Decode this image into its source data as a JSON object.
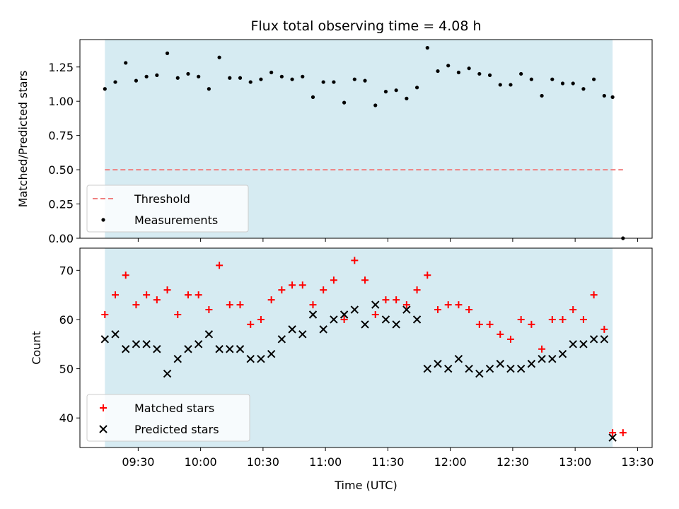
{
  "chart_data": [
    {
      "type": "scatter",
      "title": "Flux total observing time = 4.08 h",
      "ylabel": "Matched/Predicted stars",
      "xlabel": "",
      "ylim": [
        0,
        1.45
      ],
      "yticks": [
        "0.00",
        "0.25",
        "0.50",
        "0.75",
        "1.00",
        "1.25"
      ],
      "xlim": [
        "09:02",
        "13:37"
      ],
      "shaded_range": [
        "09:14",
        "13:18"
      ],
      "shade_color": "#add8e6",
      "threshold": {
        "name": "Threshold",
        "value": 0.5,
        "x_range": [
          "09:14",
          "13:23"
        ],
        "color": "#f08080"
      },
      "legend_position": "lower-left",
      "series": [
        {
          "name": "Measurements",
          "color": "#000000",
          "marker": "dot",
          "x": [
            "09:14",
            "09:19",
            "09:24",
            "09:29",
            "09:34",
            "09:39",
            "09:44",
            "09:49",
            "09:54",
            "09:59",
            "10:04",
            "10:09",
            "10:14",
            "10:19",
            "10:24",
            "10:29",
            "10:34",
            "10:39",
            "10:44",
            "10:49",
            "10:54",
            "10:59",
            "11:04",
            "11:09",
            "11:14",
            "11:19",
            "11:24",
            "11:29",
            "11:34",
            "11:39",
            "11:44",
            "11:49",
            "11:54",
            "11:59",
            "12:04",
            "12:09",
            "12:14",
            "12:19",
            "12:24",
            "12:29",
            "12:34",
            "12:39",
            "12:44",
            "12:49",
            "12:54",
            "12:59",
            "13:04",
            "13:09",
            "13:14",
            "13:18",
            "13:23"
          ],
          "y": [
            1.09,
            1.14,
            1.28,
            1.15,
            1.18,
            1.19,
            1.35,
            1.17,
            1.2,
            1.18,
            1.09,
            1.32,
            1.17,
            1.17,
            1.14,
            1.16,
            1.21,
            1.18,
            1.16,
            1.18,
            1.03,
            1.14,
            1.14,
            0.99,
            1.16,
            1.15,
            0.97,
            1.07,
            1.08,
            1.02,
            1.1,
            1.39,
            1.22,
            1.26,
            1.21,
            1.24,
            1.2,
            1.19,
            1.12,
            1.12,
            1.2,
            1.16,
            1.04,
            1.16,
            1.13,
            1.13,
            1.09,
            1.16,
            1.04,
            1.03,
            0.0
          ]
        }
      ]
    },
    {
      "type": "scatter",
      "xlabel": "Time (UTC)",
      "ylabel": "Count",
      "ylim": [
        34,
        74.5
      ],
      "yticks": [
        "40",
        "50",
        "60",
        "70"
      ],
      "xlim": [
        "09:02",
        "13:37"
      ],
      "xticks": [
        "09:30",
        "10:00",
        "10:30",
        "11:00",
        "11:30",
        "12:00",
        "12:30",
        "13:00",
        "13:30"
      ],
      "shaded_range": [
        "09:14",
        "13:18"
      ],
      "shade_color": "#add8e6",
      "legend_position": "lower-left",
      "series": [
        {
          "name": "Matched stars",
          "color": "#ff0000",
          "marker": "plus",
          "x": [
            "09:14",
            "09:19",
            "09:24",
            "09:29",
            "09:34",
            "09:39",
            "09:44",
            "09:49",
            "09:54",
            "09:59",
            "10:04",
            "10:09",
            "10:14",
            "10:19",
            "10:24",
            "10:29",
            "10:34",
            "10:39",
            "10:44",
            "10:49",
            "10:54",
            "10:59",
            "11:04",
            "11:09",
            "11:14",
            "11:19",
            "11:24",
            "11:29",
            "11:34",
            "11:39",
            "11:44",
            "11:49",
            "11:54",
            "11:59",
            "12:04",
            "12:09",
            "12:14",
            "12:19",
            "12:24",
            "12:29",
            "12:34",
            "12:39",
            "12:44",
            "12:49",
            "12:54",
            "12:59",
            "13:04",
            "13:09",
            "13:14",
            "13:18",
            "13:23"
          ],
          "y": [
            61,
            65,
            69,
            63,
            65,
            64,
            66,
            61,
            65,
            65,
            62,
            71,
            63,
            63,
            59,
            60,
            64,
            66,
            67,
            67,
            63,
            66,
            68,
            60,
            72,
            68,
            61,
            64,
            64,
            63,
            66,
            69,
            62,
            63,
            63,
            62,
            59,
            59,
            57,
            56,
            60,
            59,
            54,
            60,
            60,
            62,
            60,
            65,
            58,
            37,
            37
          ]
        },
        {
          "name": "Predicted stars",
          "color": "#000000",
          "marker": "x",
          "x": [
            "09:14",
            "09:19",
            "09:24",
            "09:29",
            "09:34",
            "09:39",
            "09:44",
            "09:49",
            "09:54",
            "09:59",
            "10:04",
            "10:09",
            "10:14",
            "10:19",
            "10:24",
            "10:29",
            "10:34",
            "10:39",
            "10:44",
            "10:49",
            "10:54",
            "10:59",
            "11:04",
            "11:09",
            "11:14",
            "11:19",
            "11:24",
            "11:29",
            "11:34",
            "11:39",
            "11:44",
            "11:49",
            "11:54",
            "11:59",
            "12:04",
            "12:09",
            "12:14",
            "12:19",
            "12:24",
            "12:29",
            "12:34",
            "12:39",
            "12:44",
            "12:49",
            "12:54",
            "12:59",
            "13:04",
            "13:09",
            "13:14",
            "13:18"
          ],
          "y": [
            56,
            57,
            54,
            55,
            55,
            54,
            49,
            52,
            54,
            55,
            57,
            54,
            54,
            54,
            52,
            52,
            53,
            56,
            58,
            57,
            61,
            58,
            60,
            61,
            62,
            59,
            63,
            60,
            59,
            62,
            60,
            50,
            51,
            50,
            52,
            50,
            49,
            50,
            51,
            50,
            50,
            51,
            52,
            52,
            53,
            55,
            55,
            56,
            56,
            36
          ]
        }
      ]
    }
  ]
}
